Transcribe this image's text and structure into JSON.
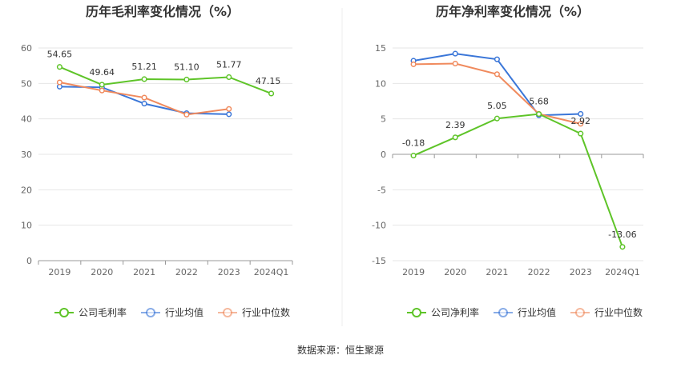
{
  "source_text": "数据来源：恒生聚源",
  "chart_data": [
    {
      "type": "line",
      "title": "历年毛利率变化情况（%）",
      "categories": [
        "2019",
        "2020",
        "2021",
        "2022",
        "2023",
        "2024Q1"
      ],
      "ylim": [
        0,
        60
      ],
      "yticks": [
        0,
        10,
        20,
        30,
        40,
        50,
        60
      ],
      "grid": true,
      "legend": "bottom",
      "series": [
        {
          "name": "公司毛利率",
          "color": "#5ec428",
          "values": [
            54.65,
            49.64,
            51.21,
            51.1,
            51.77,
            47.15
          ],
          "labels": [
            "54.65",
            "49.64",
            "51.21",
            "51.10",
            "51.77",
            "47.15"
          ]
        },
        {
          "name": "行业均值",
          "color": "#3a76d8",
          "values": [
            49.1,
            48.9,
            44.3,
            41.6,
            41.3,
            null
          ]
        },
        {
          "name": "行业中位数",
          "color": "#f08a5d",
          "values": [
            50.3,
            48.0,
            46.0,
            41.2,
            42.8,
            null
          ]
        }
      ]
    },
    {
      "type": "line",
      "title": "历年净利率变化情况（%）",
      "categories": [
        "2019",
        "2020",
        "2021",
        "2022",
        "2023",
        "2024Q1"
      ],
      "ylim": [
        -15,
        15
      ],
      "yticks": [
        -15,
        -10,
        -5,
        0,
        5,
        10,
        15
      ],
      "grid": true,
      "legend": "bottom",
      "series": [
        {
          "name": "公司净利率",
          "color": "#5ec428",
          "values": [
            -0.18,
            2.39,
            5.05,
            5.68,
            2.92,
            -13.06
          ],
          "labels": [
            "-0.18",
            "2.39",
            "5.05",
            "5.68",
            "2.92",
            "-13.06"
          ]
        },
        {
          "name": "行业均值",
          "color": "#3a76d8",
          "values": [
            13.2,
            14.2,
            13.4,
            5.5,
            5.7,
            null
          ]
        },
        {
          "name": "行业中位数",
          "color": "#f08a5d",
          "values": [
            12.7,
            12.8,
            11.3,
            5.7,
            4.3,
            null
          ]
        }
      ]
    }
  ]
}
